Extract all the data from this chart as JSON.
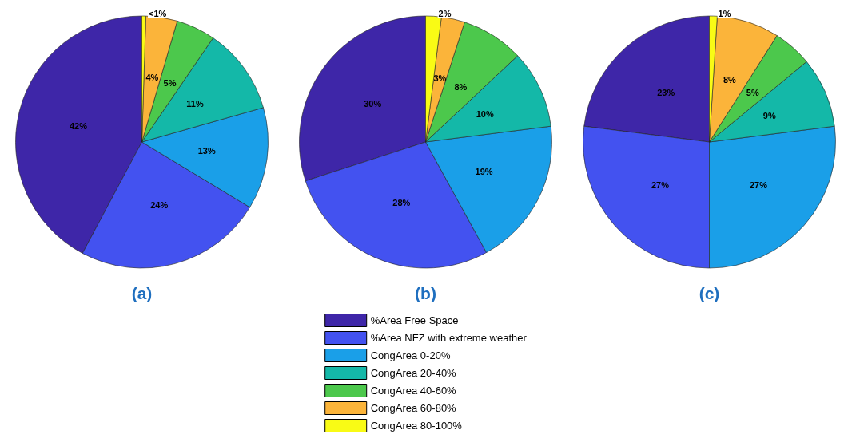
{
  "chart_data": [
    {
      "type": "pie",
      "title": "(a)",
      "categories": [
        null,
        null,
        null,
        null,
        null,
        null,
        null
      ],
      "values": [
        42,
        24,
        13,
        11,
        5,
        4,
        0.5
      ],
      "value_labels": [
        "42%",
        "24%",
        "13%",
        "11%",
        "5%",
        "4%",
        "<1%"
      ],
      "colors": [
        "#3e26a8",
        "#4352f0",
        "#1a9fe8",
        "#14b8a8",
        "#4cc84c",
        "#fbb43a",
        "#f9fb15"
      ],
      "legend": false
    },
    {
      "type": "pie",
      "title": "(b)",
      "categories": [
        "%Area Free Space",
        "%Area NFZ with extreme weather",
        "CongArea 0-20%",
        "CongArea 20-40%",
        "CongArea 40-60%",
        "CongArea 60-80%",
        "CongArea 80-100%"
      ],
      "values": [
        30,
        28,
        19,
        10,
        8,
        3,
        2
      ],
      "value_labels": [
        "30%",
        "28%",
        "19%",
        "10%",
        "8%",
        "3%",
        "2%"
      ],
      "colors": [
        "#3e26a8",
        "#4352f0",
        "#1a9fe8",
        "#14b8a8",
        "#4cc84c",
        "#fbb43a",
        "#f9fb15"
      ],
      "legend": "bottom"
    },
    {
      "type": "pie",
      "title": "(c)",
      "categories": [
        null,
        null,
        null,
        null,
        null,
        null,
        null
      ],
      "values": [
        23,
        27,
        27,
        9,
        5,
        8,
        1
      ],
      "value_labels": [
        "23%",
        "27%",
        "27%",
        "9%",
        "5%",
        "8%",
        "1%"
      ],
      "colors": [
        "#3e26a8",
        "#4352f0",
        "#1a9fe8",
        "#14b8a8",
        "#4cc84c",
        "#fbb43a",
        "#f9fb15"
      ],
      "legend": false
    }
  ]
}
